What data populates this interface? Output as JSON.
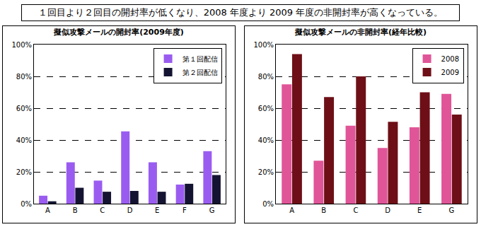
{
  "header": "１回目より２回目の開封率が低くなり、2008 年度より 2009 年度の非開封率が高くなっている。",
  "chart_data": [
    {
      "type": "bar",
      "title": "擬似攻撃メールの開封率(2009年度)",
      "categories": [
        "A",
        "B",
        "C",
        "D",
        "E",
        "F",
        "G"
      ],
      "series": [
        {
          "name": "第１回配信",
          "color": "#9a5cf0",
          "values": [
            5,
            26,
            14.5,
            45.5,
            26,
            12,
            33
          ]
        },
        {
          "name": "第２回配信",
          "color": "#141432",
          "values": [
            1.5,
            10,
            7.5,
            8,
            7.5,
            12.5,
            18
          ]
        }
      ],
      "ylim": [
        0,
        100
      ],
      "yticks": [
        {
          "value": 0,
          "label": "0%"
        },
        {
          "value": 20,
          "label": "20%"
        },
        {
          "value": 40,
          "label": "40%"
        },
        {
          "value": 60,
          "label": "60%"
        },
        {
          "value": 80,
          "label": "80%"
        },
        {
          "value": 100,
          "label": "100%"
        }
      ],
      "grid": true,
      "legend": "top right"
    },
    {
      "type": "bar",
      "title": "擬似攻撃メールの非開封率(経年比較)",
      "categories": [
        "A",
        "B",
        "C",
        "D",
        "E",
        "G"
      ],
      "series": [
        {
          "name": "2008",
          "color": "#e05598",
          "values": [
            75,
            27,
            49,
            35,
            48,
            69
          ]
        },
        {
          "name": "2009",
          "color": "#6e0f17",
          "values": [
            94,
            67,
            80,
            51.5,
            70,
            56
          ]
        }
      ],
      "ylim": [
        0,
        100
      ],
      "yticks": [
        {
          "value": 0,
          "label": "0%"
        },
        {
          "value": 20,
          "label": "20%"
        },
        {
          "value": 40,
          "label": "40%"
        },
        {
          "value": 60,
          "label": "60%"
        },
        {
          "value": 80,
          "label": "80%"
        },
        {
          "value": 100,
          "label": "100%"
        }
      ],
      "grid": true,
      "legend": "top right"
    }
  ]
}
